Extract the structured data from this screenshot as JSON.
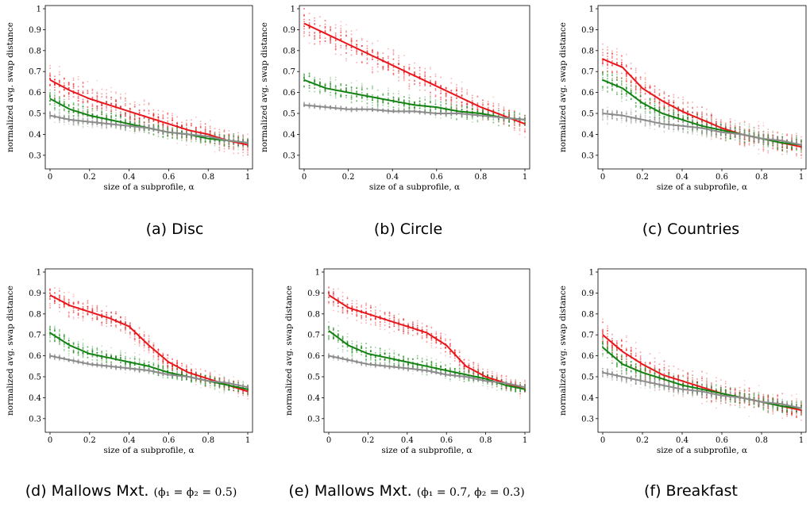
{
  "figure": {
    "panels": [
      {
        "id": "a",
        "caption_main": "(a) Disc",
        "caption_sub": ""
      },
      {
        "id": "b",
        "caption_main": "(b) Circle",
        "caption_sub": ""
      },
      {
        "id": "c",
        "caption_main": "(c) Countries",
        "caption_sub": ""
      },
      {
        "id": "d",
        "caption_main": "(d) Mallows Mxt.",
        "caption_sub": "(ϕ₁ = ϕ₂ = 0.5)"
      },
      {
        "id": "e",
        "caption_main": "(e) Mallows Mxt.",
        "caption_sub": "(ϕ₁ = 0.7, ϕ₂ = 0.3)"
      },
      {
        "id": "f",
        "caption_main": "(f) Breakfast",
        "caption_sub": ""
      }
    ]
  },
  "colors": {
    "red": "#e8161b",
    "green": "#138213",
    "gray": "#8c8c8c"
  },
  "chart_data": [
    {
      "type": "line",
      "title": "",
      "xlabel": "size of a subprofile, α",
      "ylabel": "normalized avg. swap distance",
      "xlim": [
        0,
        1
      ],
      "ylim": [
        0.25,
        1
      ],
      "xticks": [
        "0",
        "0.2",
        "0.4",
        "0.6",
        "0.8",
        "1"
      ],
      "yticks": [
        "0.3",
        "0.4",
        "0.5",
        "0.6",
        "0.7",
        "0.8",
        "0.9",
        "1"
      ],
      "x": [
        0,
        0.1,
        0.2,
        0.3,
        0.4,
        0.5,
        0.6,
        0.7,
        0.8,
        0.9,
        1
      ],
      "series": [
        {
          "color": "red",
          "values": [
            0.66,
            0.61,
            0.57,
            0.54,
            0.51,
            0.48,
            0.45,
            0.42,
            0.4,
            0.37,
            0.35
          ],
          "spread": 0.12
        },
        {
          "color": "green",
          "values": [
            0.57,
            0.52,
            0.49,
            0.47,
            0.45,
            0.43,
            0.41,
            0.4,
            0.38,
            0.37,
            0.36
          ],
          "spread": 0.07
        },
        {
          "color": "gray",
          "values": [
            0.49,
            0.47,
            0.46,
            0.45,
            0.44,
            0.43,
            0.41,
            0.4,
            0.39,
            0.37,
            0.36
          ],
          "spread": 0.04
        }
      ]
    },
    {
      "type": "line",
      "title": "",
      "xlabel": "size of a subprofile, α",
      "ylabel": "normalized avg. swap distance",
      "xlim": [
        0,
        1
      ],
      "ylim": [
        0.25,
        1
      ],
      "xticks": [
        "0",
        "0.2",
        "0.4",
        "0.6",
        "0.8",
        "1"
      ],
      "yticks": [
        "0.3",
        "0.4",
        "0.5",
        "0.6",
        "0.7",
        "0.8",
        "0.9",
        "1"
      ],
      "x": [
        0,
        0.1,
        0.2,
        0.3,
        0.4,
        0.5,
        0.6,
        0.7,
        0.8,
        0.9,
        1
      ],
      "series": [
        {
          "color": "red",
          "values": [
            0.93,
            0.88,
            0.83,
            0.78,
            0.73,
            0.68,
            0.63,
            0.58,
            0.53,
            0.49,
            0.45
          ],
          "spread": 0.12
        },
        {
          "color": "green",
          "values": [
            0.66,
            0.62,
            0.6,
            0.58,
            0.56,
            0.54,
            0.53,
            0.51,
            0.5,
            0.48,
            0.47
          ],
          "spread": 0.08
        },
        {
          "color": "gray",
          "values": [
            0.54,
            0.53,
            0.52,
            0.52,
            0.51,
            0.51,
            0.5,
            0.5,
            0.49,
            0.48,
            0.47
          ],
          "spread": 0.02
        }
      ]
    },
    {
      "type": "line",
      "title": "",
      "xlabel": "size of a subprofile, α",
      "ylabel": "normalized avg. swap distance",
      "xlim": [
        0,
        1
      ],
      "ylim": [
        0.25,
        1
      ],
      "xticks": [
        "0",
        "0.2",
        "0.4",
        "0.6",
        "0.8",
        "1"
      ],
      "yticks": [
        "0.3",
        "0.4",
        "0.5",
        "0.6",
        "0.7",
        "0.8",
        "0.9",
        "1"
      ],
      "x": [
        0,
        0.1,
        0.2,
        0.3,
        0.4,
        0.5,
        0.6,
        0.7,
        0.8,
        0.9,
        1
      ],
      "series": [
        {
          "color": "red",
          "values": [
            0.76,
            0.72,
            0.62,
            0.56,
            0.51,
            0.47,
            0.43,
            0.4,
            0.38,
            0.36,
            0.34
          ],
          "spread": 0.12
        },
        {
          "color": "green",
          "values": [
            0.66,
            0.62,
            0.55,
            0.5,
            0.47,
            0.44,
            0.42,
            0.4,
            0.38,
            0.36,
            0.35
          ],
          "spread": 0.09
        },
        {
          "color": "gray",
          "values": [
            0.5,
            0.49,
            0.47,
            0.45,
            0.44,
            0.43,
            0.41,
            0.4,
            0.38,
            0.37,
            0.35
          ],
          "spread": 0.06
        }
      ]
    },
    {
      "type": "line",
      "title": "",
      "xlabel": "size of a subprofile, α",
      "ylabel": "normalized avg. swap distance",
      "xlim": [
        0,
        1
      ],
      "ylim": [
        0.25,
        1
      ],
      "xticks": [
        "0",
        "0.2",
        "0.4",
        "0.6",
        "0.8",
        "1"
      ],
      "yticks": [
        "0.3",
        "0.4",
        "0.5",
        "0.6",
        "0.7",
        "0.8",
        "0.9",
        "1"
      ],
      "x": [
        0,
        0.1,
        0.2,
        0.3,
        0.4,
        0.5,
        0.6,
        0.7,
        0.8,
        0.9,
        1
      ],
      "series": [
        {
          "color": "red",
          "values": [
            0.89,
            0.84,
            0.81,
            0.78,
            0.74,
            0.65,
            0.57,
            0.52,
            0.49,
            0.46,
            0.43
          ],
          "spread": 0.08
        },
        {
          "color": "green",
          "values": [
            0.71,
            0.65,
            0.61,
            0.59,
            0.57,
            0.55,
            0.52,
            0.5,
            0.48,
            0.46,
            0.44
          ],
          "spread": 0.07
        },
        {
          "color": "gray",
          "values": [
            0.6,
            0.58,
            0.56,
            0.55,
            0.54,
            0.53,
            0.51,
            0.5,
            0.48,
            0.47,
            0.45
          ],
          "spread": 0.02
        }
      ]
    },
    {
      "type": "line",
      "title": "",
      "xlabel": "size of a subprofile, α",
      "ylabel": "normalized avg. swap distance",
      "xlim": [
        0,
        1
      ],
      "ylim": [
        0.25,
        1
      ],
      "xticks": [
        "0",
        "0.2",
        "0.4",
        "0.6",
        "0.8",
        "1"
      ],
      "yticks": [
        "0.3",
        "0.4",
        "0.5",
        "0.6",
        "0.7",
        "0.8",
        "0.9",
        "1"
      ],
      "x": [
        0,
        0.1,
        0.2,
        0.3,
        0.4,
        0.5,
        0.6,
        0.7,
        0.8,
        0.9,
        1
      ],
      "series": [
        {
          "color": "red",
          "values": [
            0.89,
            0.83,
            0.8,
            0.77,
            0.74,
            0.71,
            0.65,
            0.55,
            0.5,
            0.47,
            0.44
          ],
          "spread": 0.08
        },
        {
          "color": "green",
          "values": [
            0.72,
            0.65,
            0.61,
            0.59,
            0.57,
            0.55,
            0.53,
            0.51,
            0.49,
            0.46,
            0.44
          ],
          "spread": 0.07
        },
        {
          "color": "gray",
          "values": [
            0.6,
            0.58,
            0.56,
            0.55,
            0.54,
            0.53,
            0.51,
            0.5,
            0.48,
            0.47,
            0.45
          ],
          "spread": 0.02
        }
      ]
    },
    {
      "type": "line",
      "title": "",
      "xlabel": "size of a subprofile, α",
      "ylabel": "normalized avg. swap distance",
      "xlim": [
        0,
        1
      ],
      "ylim": [
        0.25,
        1
      ],
      "xticks": [
        "0",
        "0.2",
        "0.4",
        "0.6",
        "0.8",
        "1"
      ],
      "yticks": [
        "0.3",
        "0.4",
        "0.5",
        "0.6",
        "0.7",
        "0.8",
        "0.9",
        "1"
      ],
      "x": [
        0,
        0.1,
        0.2,
        0.3,
        0.4,
        0.5,
        0.6,
        0.7,
        0.8,
        0.9,
        1
      ],
      "series": [
        {
          "color": "red",
          "values": [
            0.7,
            0.62,
            0.56,
            0.51,
            0.48,
            0.45,
            0.42,
            0.4,
            0.38,
            0.36,
            0.34
          ],
          "spread": 0.12
        },
        {
          "color": "green",
          "values": [
            0.64,
            0.56,
            0.52,
            0.49,
            0.46,
            0.44,
            0.42,
            0.4,
            0.38,
            0.36,
            0.35
          ],
          "spread": 0.08
        },
        {
          "color": "gray",
          "values": [
            0.52,
            0.5,
            0.48,
            0.46,
            0.44,
            0.43,
            0.41,
            0.4,
            0.38,
            0.37,
            0.35
          ],
          "spread": 0.05
        }
      ]
    }
  ]
}
